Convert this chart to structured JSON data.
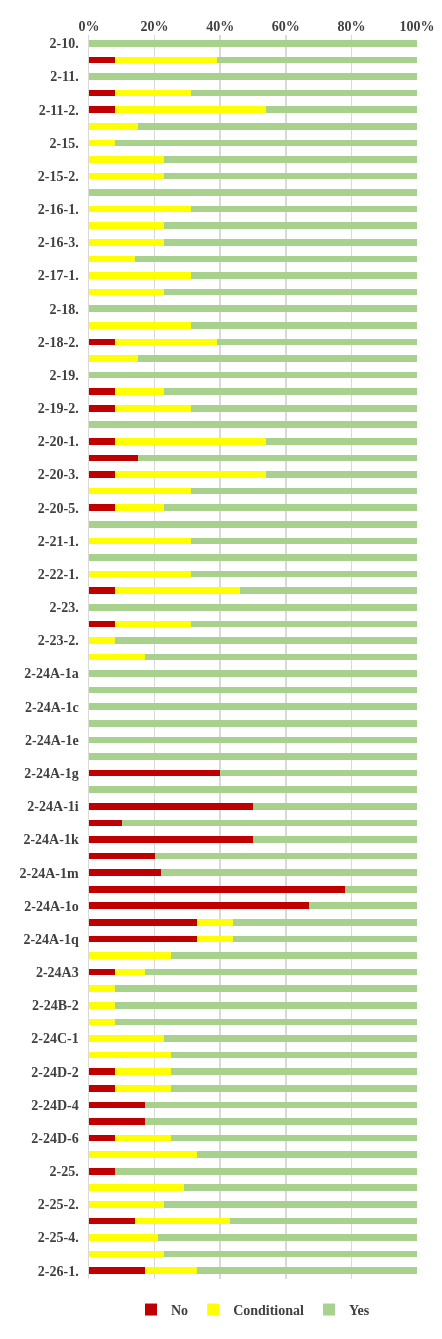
{
  "chart_data": {
    "type": "bar",
    "orientation": "horizontal",
    "stacked": true,
    "categories": [
      "2-10.",
      null,
      "2-11.",
      null,
      "2-11-2.",
      null,
      "2-15.",
      null,
      "2-15-2.",
      null,
      "2-16-1.",
      null,
      "2-16-3.",
      null,
      "2-17-1.",
      null,
      "2-18.",
      null,
      "2-18-2.",
      null,
      "2-19.",
      null,
      "2-19-2.",
      null,
      "2-20-1.",
      null,
      "2-20-3.",
      null,
      "2-20-5.",
      null,
      "2-21-1.",
      null,
      "2-22-1.",
      null,
      "2-23.",
      null,
      "2-23-2.",
      null,
      "2-24A-1a",
      null,
      "2-24A-1c",
      null,
      "2-24A-1e",
      null,
      "2-24A-1g",
      null,
      "2-24A-1i",
      null,
      "2-24A-1k",
      null,
      "2-24A-1m",
      null,
      "2-24A-1o",
      null,
      "2-24A-1q",
      null,
      "2-24A3",
      null,
      "2-24B-2",
      null,
      "2-24C-1",
      null,
      "2-24D-2",
      null,
      "2-24D-4",
      null,
      "2-24D-6",
      null,
      "2-25.",
      null,
      "2-25-2.",
      null,
      "2-25-4.",
      null,
      "2-26-1."
    ],
    "series": [
      {
        "name": "No",
        "color": "#c00000",
        "values": [
          0,
          8,
          0,
          8,
          8,
          0,
          0,
          0,
          0,
          0,
          0,
          0,
          0,
          0,
          0,
          0,
          0,
          0,
          8,
          0,
          0,
          8,
          8,
          0,
          8,
          15,
          8,
          0,
          8,
          0,
          0,
          0,
          0,
          8,
          0,
          8,
          0,
          0,
          0,
          0,
          0,
          0,
          0,
          0,
          40,
          0,
          50,
          10,
          50,
          20,
          22,
          78,
          67,
          33,
          33,
          0,
          8,
          0,
          0,
          0,
          0,
          0,
          8,
          8,
          17,
          17,
          8,
          0,
          8,
          0,
          0,
          14,
          0,
          0,
          17
        ]
      },
      {
        "name": "Conditional",
        "color": "#ffff00",
        "values": [
          0,
          31,
          0,
          23,
          46,
          15,
          8,
          23,
          23,
          0,
          31,
          23,
          23,
          14,
          31,
          23,
          0,
          31,
          31,
          15,
          0,
          15,
          23,
          0,
          46,
          0,
          46,
          31,
          15,
          0,
          31,
          0,
          31,
          38,
          0,
          23,
          8,
          17,
          0,
          0,
          0,
          0,
          0,
          0,
          0,
          0,
          0,
          0,
          0,
          0,
          0,
          0,
          0,
          11,
          11,
          25,
          9,
          8,
          8,
          8,
          23,
          25,
          17,
          17,
          0,
          0,
          17,
          33,
          0,
          29,
          23,
          29,
          21,
          23,
          16
        ]
      },
      {
        "name": "Yes",
        "color": "#a9d18e",
        "values": [
          100,
          61,
          100,
          69,
          46,
          85,
          92,
          77,
          77,
          100,
          69,
          77,
          77,
          86,
          69,
          77,
          100,
          69,
          61,
          85,
          100,
          77,
          69,
          100,
          46,
          85,
          46,
          69,
          77,
          100,
          69,
          100,
          69,
          54,
          100,
          69,
          92,
          83,
          100,
          100,
          100,
          100,
          100,
          100,
          60,
          100,
          50,
          90,
          50,
          80,
          78,
          22,
          33,
          56,
          56,
          75,
          83,
          92,
          92,
          92,
          77,
          75,
          75,
          75,
          83,
          83,
          75,
          67,
          92,
          71,
          77,
          57,
          79,
          77,
          67
        ]
      }
    ],
    "xlim": [
      0,
      100
    ],
    "xticks": [
      {
        "value": 0,
        "label": "0%"
      },
      {
        "value": 20,
        "label": "20%"
      },
      {
        "value": 40,
        "label": "40%"
      },
      {
        "value": 60,
        "label": "60%"
      },
      {
        "value": 80,
        "label": "80%"
      },
      {
        "value": 100,
        "label": "100%"
      }
    ],
    "grid": "x",
    "legend": "bottom"
  }
}
